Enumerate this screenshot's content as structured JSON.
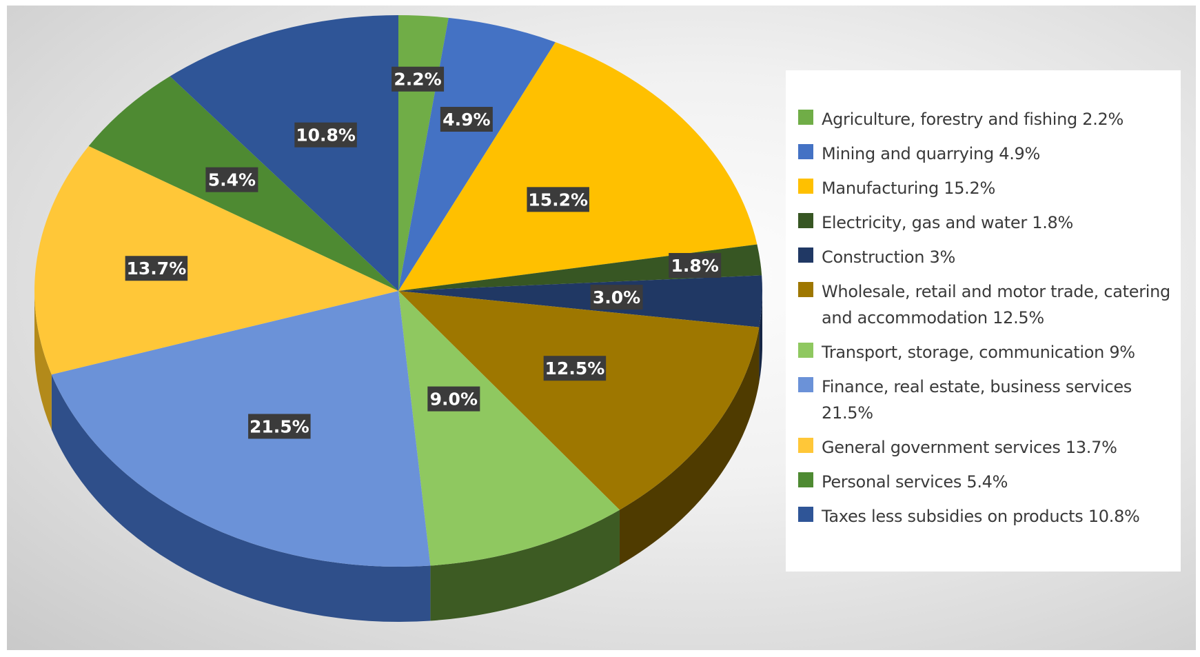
{
  "chart_data": {
    "type": "pie",
    "title": "",
    "slices": [
      {
        "label": "Agriculture, forestry and fishing 2.2%",
        "value": 2.2,
        "data_label": "2.2%",
        "color": "#70ad47",
        "side": "#4a7a2c"
      },
      {
        "label": "Mining and quarrying 4.9%",
        "value": 4.9,
        "data_label": "4.9%",
        "color": "#4472c4",
        "side": "#2f5597"
      },
      {
        "label": "Manufacturing 15.2%",
        "value": 15.2,
        "data_label": "15.2%",
        "color": "#ffc000",
        "side": "#b38600"
      },
      {
        "label": "Electricity, gas and water 1.8%",
        "value": 1.8,
        "data_label": "1.8%",
        "color": "#375623",
        "side": "#243a17"
      },
      {
        "label": "Construction 3%",
        "value": 3.0,
        "data_label": "3.0%",
        "color": "#203864",
        "side": "#152544"
      },
      {
        "label": "Wholesale, retail and motor trade, catering and accommodation 12.5%",
        "value": 12.5,
        "data_label": "12.5%",
        "color": "#9e7700",
        "side": "#4f3b00"
      },
      {
        "label": "Transport, storage, communication 9%",
        "value": 9.0,
        "data_label": "9.0%",
        "color": "#8fc860",
        "side": "#3d5b23"
      },
      {
        "label": "Finance, real estate, business services 21.5%",
        "value": 21.5,
        "data_label": "21.5%",
        "color": "#6b92d8",
        "side": "#2f4f8a"
      },
      {
        "label": "General government services 13.7%",
        "value": 13.7,
        "data_label": "13.7%",
        "color": "#ffc738",
        "side": "#b38a1a"
      },
      {
        "label": "Personal services 5.4%",
        "value": 5.4,
        "data_label": "5.4%",
        "color": "#4e8a32",
        "side": "#2f5a1c"
      },
      {
        "label": "Taxes less subsidies on products 10.8%",
        "value": 10.8,
        "data_label": "10.8%",
        "color": "#2f5597",
        "side": "#1c3a6e"
      }
    ],
    "legend_position": "right"
  }
}
